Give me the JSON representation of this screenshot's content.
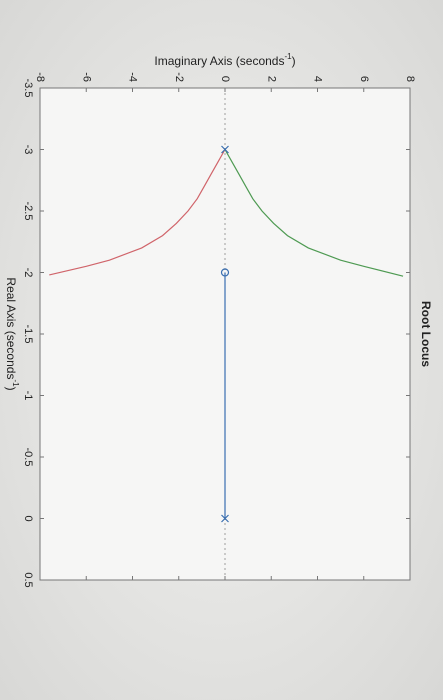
{
  "chart_data": {
    "type": "line",
    "title": "Root Locus",
    "xlabel": {
      "text": "Real Axis (seconds",
      "sup": "-1",
      "end": ")"
    },
    "ylabel": {
      "text": "Imaginary Axis (seconds",
      "sup": "-1",
      "end": ")"
    },
    "xlim": [
      -3.5,
      0.5
    ],
    "xticks": [
      -3.5,
      -3,
      -2.5,
      -2,
      -1.5,
      -1,
      -0.5,
      0,
      0.5
    ],
    "ylim": [
      -8,
      8
    ],
    "yticks": [
      -8,
      -6,
      -4,
      -2,
      0,
      2,
      4,
      6,
      8
    ],
    "series": [
      {
        "color": "#d0646a",
        "x": [
          -3,
          -2.9,
          -2.8,
          -2.7,
          -2.6,
          -2.5,
          -2.4,
          -2.3,
          -2.2,
          -2.1,
          -2.05,
          -1.98
        ],
        "values": [
          0,
          -0.3,
          -0.6,
          -0.9,
          -1.2,
          -1.6,
          -2.1,
          -2.7,
          -3.6,
          -5.0,
          -6.0,
          -7.6
        ]
      },
      {
        "color": "#4e9a52",
        "x": [
          -3,
          -2.9,
          -2.8,
          -2.7,
          -2.6,
          -2.5,
          -2.4,
          -2.3,
          -2.2,
          -2.1,
          -2.05,
          -1.97
        ],
        "values": [
          0,
          0.3,
          0.6,
          0.9,
          1.2,
          1.6,
          2.1,
          2.7,
          3.6,
          5.0,
          6.0,
          7.7
        ]
      },
      {
        "color": "#3a6fb0",
        "x": [
          -2,
          0
        ],
        "values": [
          0,
          0
        ]
      }
    ],
    "markers": [
      {
        "marker": "x",
        "color": "#3a6fb0",
        "x": [
          -3,
          0
        ],
        "values": [
          0,
          0
        ]
      },
      {
        "marker": "o",
        "color": "#3a6fb0",
        "x": [
          -2
        ],
        "values": [
          0
        ]
      }
    ]
  }
}
